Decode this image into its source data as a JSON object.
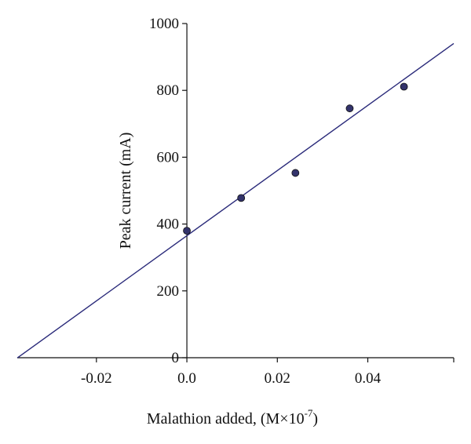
{
  "chart_data": {
    "type": "scatter",
    "xlabel": "Malathion added, (M×10",
    "xlabel_exp": "-7",
    "xlabel_end": ")",
    "ylabel": "Peak current (mA)",
    "xlim": [
      -0.0375,
      0.059
    ],
    "ylim": [
      0,
      1000
    ],
    "x_ticks": [
      -0.02,
      0.0,
      0.02,
      0.04
    ],
    "x_tick_labels": [
      "-0.02",
      "0.0",
      "0.02",
      "0.04"
    ],
    "y_ticks": [
      0,
      200,
      400,
      600,
      800,
      1000
    ],
    "y_tick_labels": [
      "0",
      "200",
      "400",
      "600",
      "800",
      "1000"
    ],
    "grid": false,
    "points": [
      {
        "x": 0.0,
        "y": 380
      },
      {
        "x": 0.012,
        "y": 478
      },
      {
        "x": 0.024,
        "y": 553
      },
      {
        "x": 0.036,
        "y": 746
      },
      {
        "x": 0.048,
        "y": 811
      }
    ],
    "fit_line": {
      "x_start": -0.0375,
      "x_end": 0.059,
      "slope": 9750,
      "intercept": 365
    },
    "colors": {
      "line": "#2a2a7a",
      "marker_fill": "#33336b",
      "axis": "#111111"
    }
  }
}
